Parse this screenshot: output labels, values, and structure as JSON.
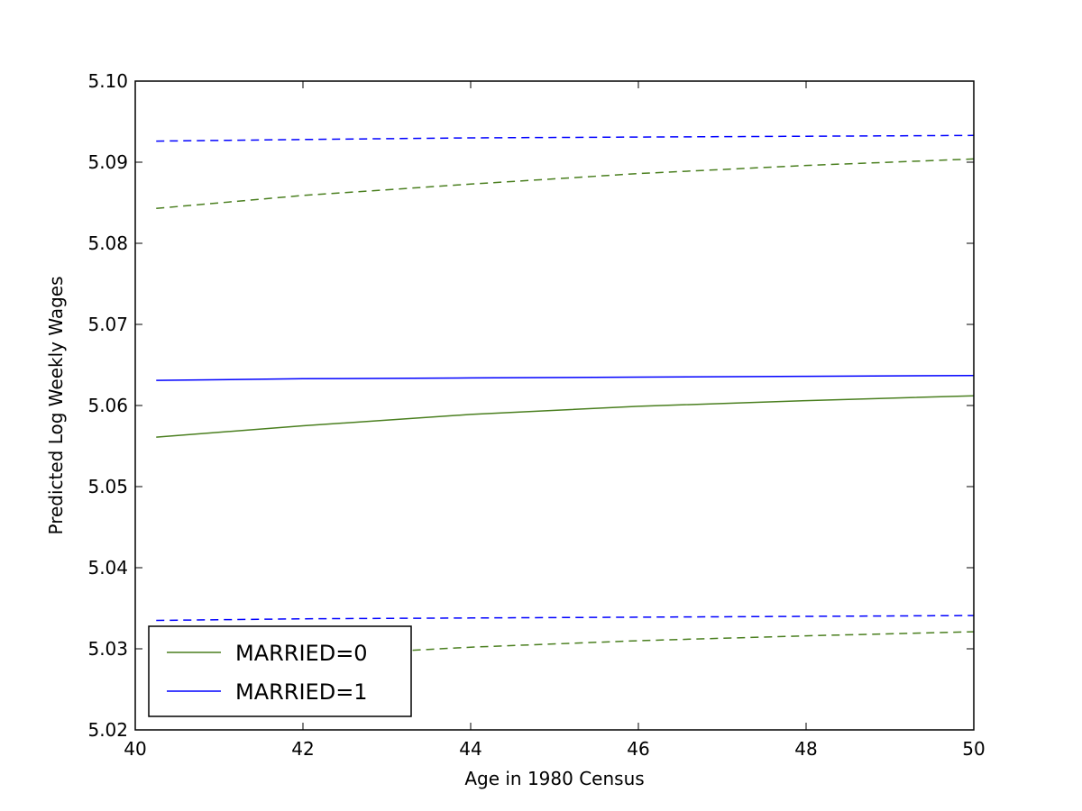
{
  "chart_data": {
    "type": "line",
    "title": "",
    "xlabel": "Age in 1980 Census",
    "ylabel": "Predicted Log Weekly Wages",
    "xlim": [
      40,
      50
    ],
    "ylim": [
      5.02,
      5.1
    ],
    "xticks": [
      40,
      42,
      44,
      46,
      48,
      50
    ],
    "xtick_labels": [
      "40",
      "42",
      "44",
      "46",
      "48",
      "50"
    ],
    "yticks": [
      5.02,
      5.03,
      5.04,
      5.05,
      5.06,
      5.07,
      5.08,
      5.09,
      5.1
    ],
    "ytick_labels": [
      "5.02",
      "5.03",
      "5.04",
      "5.05",
      "5.06",
      "5.07",
      "5.08",
      "5.09",
      "5.10"
    ],
    "grid": false,
    "legend_position": "lower-left",
    "series": [
      {
        "name": "MARRIED=0",
        "kind": "estimate",
        "color": "#4a7f1f",
        "style": "solid",
        "in_legend": true,
        "x": [
          40.25,
          42,
          44,
          46,
          48,
          50
        ],
        "values": [
          5.0561,
          5.0575,
          5.0589,
          5.0599,
          5.0606,
          5.0612
        ]
      },
      {
        "name": "MARRIED=1",
        "kind": "estimate",
        "color": "#0000ff",
        "style": "solid",
        "in_legend": true,
        "x": [
          40.25,
          42,
          44,
          46,
          48,
          50
        ],
        "values": [
          5.0631,
          5.0633,
          5.0634,
          5.0635,
          5.0636,
          5.0637
        ]
      },
      {
        "name": "MARRIED=0 upper",
        "kind": "ci-upper",
        "color": "#4a7f1f",
        "style": "dashed",
        "in_legend": false,
        "x": [
          40.25,
          42,
          44,
          46,
          48,
          50
        ],
        "values": [
          5.0843,
          5.0859,
          5.0873,
          5.0886,
          5.0896,
          5.0904
        ]
      },
      {
        "name": "MARRIED=0 lower",
        "kind": "ci-lower",
        "color": "#4a7f1f",
        "style": "dashed",
        "in_legend": false,
        "x": [
          40.25,
          42,
          44,
          46,
          48,
          50
        ],
        "values": [
          5.0277,
          5.0291,
          5.0302,
          5.031,
          5.0316,
          5.0321
        ]
      },
      {
        "name": "MARRIED=1 upper",
        "kind": "ci-upper",
        "color": "#0000ff",
        "style": "dashed",
        "in_legend": false,
        "x": [
          40.25,
          42,
          44,
          46,
          48,
          50
        ],
        "values": [
          5.0926,
          5.0928,
          5.093,
          5.0931,
          5.0932,
          5.0933
        ]
      },
      {
        "name": "MARRIED=1 lower",
        "kind": "ci-lower",
        "color": "#0000ff",
        "style": "dashed",
        "in_legend": false,
        "x": [
          40.25,
          42,
          44,
          46,
          48,
          50
        ],
        "values": [
          5.0335,
          5.0337,
          5.0338,
          5.0339,
          5.034,
          5.0341
        ]
      }
    ],
    "legend": [
      {
        "label": "MARRIED=0",
        "color": "#4a7f1f"
      },
      {
        "label": "MARRIED=1",
        "color": "#0000ff"
      }
    ]
  }
}
